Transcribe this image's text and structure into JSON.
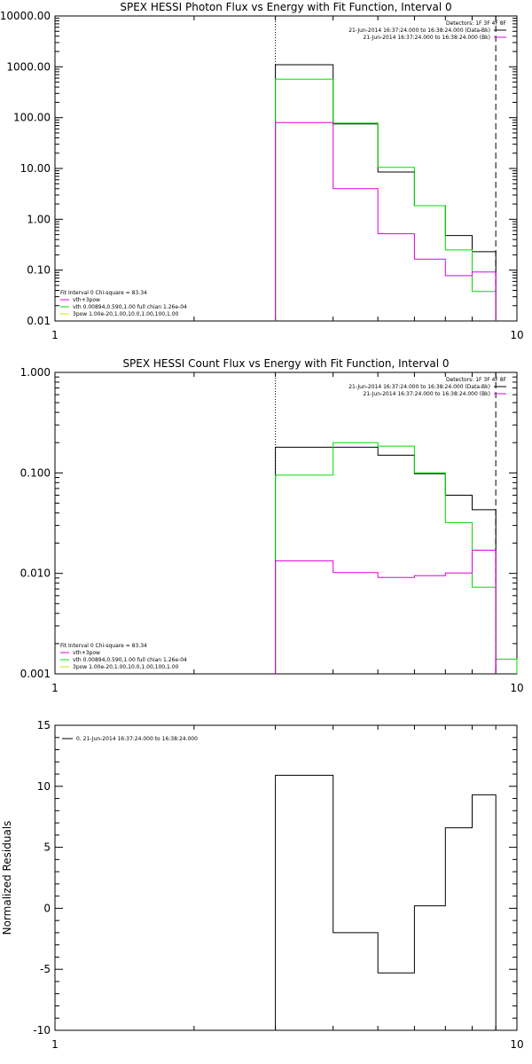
{
  "chart_data": [
    {
      "type": "line",
      "title": "SPEX HESSI Photon Flux vs Energy with Fit Function, Interval 0",
      "ylabel": "",
      "xscale": "log",
      "yscale": "log",
      "xlim": [
        1,
        10
      ],
      "ylim": [
        0.01,
        10000
      ],
      "x_ticks": [
        "1",
        "10"
      ],
      "y_ticks": [
        "0.01",
        "0.10",
        "1.00",
        "10.00",
        "100.00",
        "1000.00",
        "10000.00"
      ],
      "y_tick_values": [
        0.01,
        0.1,
        1,
        10,
        100,
        1000,
        10000
      ],
      "vlines": [
        {
          "x": 3.0,
          "style": "dotted"
        },
        {
          "x": 9.0,
          "style": "dashed"
        }
      ],
      "edges": [
        3.0,
        4.0,
        5.0,
        6.0,
        7.0,
        8.0,
        9.0
      ],
      "series": [
        {
          "color": "#000000",
          "values": [
            1100,
            75,
            8.5,
            1.85,
            0.48,
            0.23
          ]
        },
        {
          "color": "#00dd00",
          "values": [
            570,
            78,
            10.5,
            1.85,
            0.25,
            0.038
          ]
        },
        {
          "color": "#dd00dd",
          "values": [
            80,
            4.0,
            0.52,
            0.165,
            0.078,
            0.092
          ]
        }
      ],
      "legend_top": [
        "Detectors: 1F 3F 4F 8F",
        "21-Jun-2014 16:37:24.000 to 16:38:24.000 (Data-Bk)",
        "21-Jun-2014 16:37:24.000 to 16:38:24.000 (Bk)"
      ],
      "legend_top_colors": [
        "",
        "#000000",
        "#dd00dd"
      ],
      "legend_bottom": [
        "Fit Interval 0   Chi-square = 83.34",
        "vth+3pow",
        "vth 0.00894,0.590,1.00  full chian 1.26e-04",
        "3pow 1.00e-20,1.00,10.0,1.00,100,1.00"
      ],
      "legend_bottom_colors": [
        "",
        "#dd00dd",
        "#00dd00",
        "#dddd00"
      ]
    },
    {
      "type": "line",
      "title": "SPEX HESSI Count Flux vs Energy with Fit Function, Interval 0",
      "ylabel": "",
      "xscale": "log",
      "yscale": "log",
      "xlim": [
        1,
        10
      ],
      "ylim": [
        0.001,
        1
      ],
      "x_ticks": [
        "1",
        "10"
      ],
      "y_ticks": [
        "0.001",
        "0.010",
        "0.100",
        "1.000"
      ],
      "y_tick_values": [
        0.001,
        0.01,
        0.1,
        1
      ],
      "vlines": [
        {
          "x": 3.0,
          "style": "dotted"
        },
        {
          "x": 9.0,
          "style": "dashed"
        }
      ],
      "edges": [
        3.0,
        4.0,
        5.0,
        6.0,
        7.0,
        8.0,
        9.0,
        10.0
      ],
      "series": [
        {
          "color": "#000000",
          "values": [
            0.18,
            0.18,
            0.15,
            0.098,
            0.06,
            0.043,
            null
          ]
        },
        {
          "color": "#00dd00",
          "values": [
            0.095,
            0.2,
            0.185,
            0.1,
            0.032,
            0.0073,
            0.0014
          ]
        },
        {
          "color": "#dd00dd",
          "values": [
            0.0133,
            0.0102,
            0.0091,
            0.0095,
            0.0101,
            0.017,
            null
          ]
        }
      ],
      "legend_top": [
        "Detectors: 1F 3F 4F 8F",
        "21-Jun-2014 16:37:24.000 to 16:38:24.000 (Data-Bk)",
        "21-Jun-2014 16:37:24.000 to 16:38:24.000 (Bk)"
      ],
      "legend_top_colors": [
        "",
        "#000000",
        "#dd00dd"
      ],
      "legend_bottom": [
        "Fit Interval 0   Chi-square = 83.34",
        "vth+3pow",
        "vth 0.00894,0.590,1.00  full chian 1.26e-04",
        "3pow 1.00e-20,1.00,10.0,1.00,100,1.00"
      ],
      "legend_bottom_colors": [
        "",
        "#dd00dd",
        "#00dd00",
        "#dddd00"
      ]
    },
    {
      "type": "line",
      "title": "",
      "ylabel": "Normalized Residuals",
      "xscale": "log",
      "yscale": "linear",
      "xlim": [
        1,
        10
      ],
      "ylim": [
        -10,
        15
      ],
      "x_ticks": [
        "1",
        "10"
      ],
      "y_ticks": [
        "-10",
        "-5",
        "0",
        "5",
        "10",
        "15"
      ],
      "y_tick_values": [
        -10,
        -5,
        0,
        5,
        10,
        15
      ],
      "vlines": [],
      "edges": [
        3.0,
        4.0,
        5.0,
        6.0,
        7.0,
        8.0,
        9.0
      ],
      "series": [
        {
          "color": "#000000",
          "values": [
            10.9,
            -2.0,
            -5.3,
            0.2,
            6.6,
            9.3
          ]
        }
      ],
      "legend_top": [
        "0. 21-Jun-2014 16:37:24.000 to 16:38:24.000"
      ],
      "legend_top_colors": [
        "#000000"
      ],
      "legend_bottom": [],
      "legend_bottom_colors": []
    }
  ]
}
